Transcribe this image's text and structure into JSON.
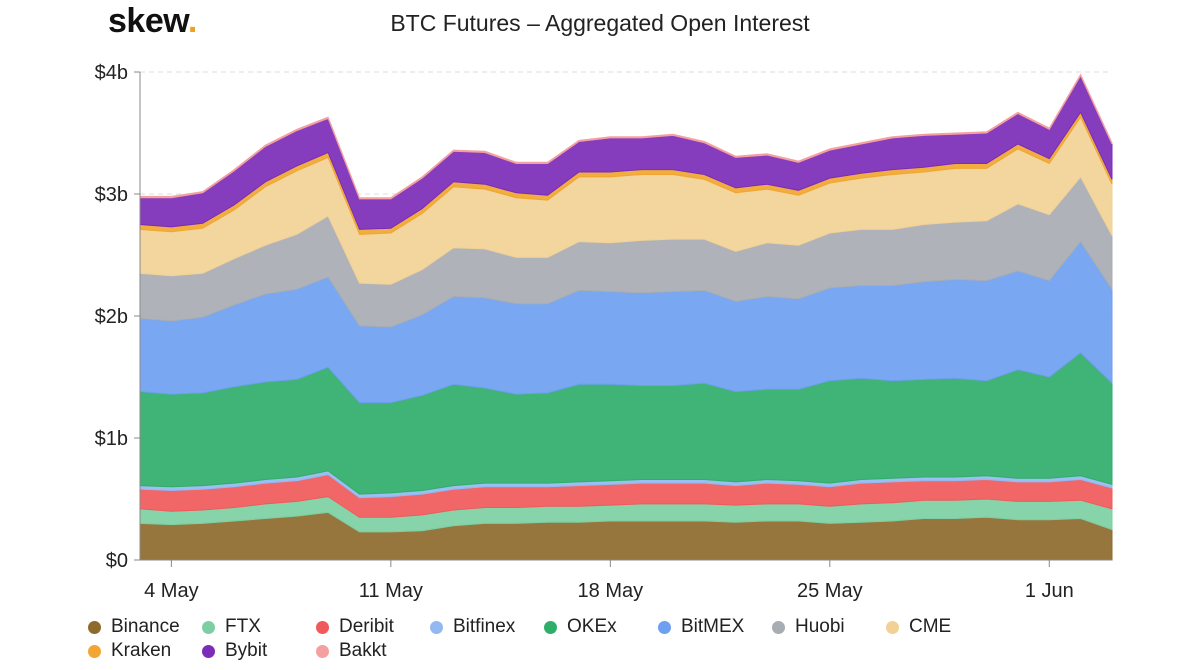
{
  "brand": {
    "name": "skew",
    "dot": "."
  },
  "chart_data": {
    "type": "area",
    "stacked": true,
    "title": "BTC Futures – Aggregated Open Interest",
    "xlabel": "",
    "ylabel": "",
    "unit": "billion USD",
    "ylim": [
      0,
      4
    ],
    "y_ticks": [
      {
        "value": 0,
        "label": "$0"
      },
      {
        "value": 1,
        "label": "$1b"
      },
      {
        "value": 2,
        "label": "$2b"
      },
      {
        "value": 3,
        "label": "$3b"
      },
      {
        "value": 4,
        "label": "$4b"
      }
    ],
    "x": [
      "2020-05-03",
      "2020-05-04",
      "2020-05-05",
      "2020-05-06",
      "2020-05-07",
      "2020-05-08",
      "2020-05-09",
      "2020-05-10",
      "2020-05-11",
      "2020-05-12",
      "2020-05-13",
      "2020-05-14",
      "2020-05-15",
      "2020-05-16",
      "2020-05-17",
      "2020-05-18",
      "2020-05-19",
      "2020-05-20",
      "2020-05-21",
      "2020-05-22",
      "2020-05-23",
      "2020-05-24",
      "2020-05-25",
      "2020-05-26",
      "2020-05-27",
      "2020-05-28",
      "2020-05-29",
      "2020-05-30",
      "2020-05-31",
      "2020-06-01",
      "2020-06-02",
      "2020-06-03"
    ],
    "x_ticks": [
      {
        "value": "2020-05-04",
        "label": "4 May"
      },
      {
        "value": "2020-05-11",
        "label": "11 May"
      },
      {
        "value": "2020-05-18",
        "label": "18 May"
      },
      {
        "value": "2020-05-25",
        "label": "25 May"
      },
      {
        "value": "2020-06-01",
        "label": "1 Jun"
      }
    ],
    "grid": "horizontal-dashed",
    "legend_position": "bottom",
    "series": [
      {
        "name": "Binance",
        "color": "#8e6a2c",
        "values": [
          0.3,
          0.29,
          0.3,
          0.32,
          0.34,
          0.36,
          0.39,
          0.23,
          0.23,
          0.24,
          0.28,
          0.3,
          0.3,
          0.31,
          0.31,
          0.32,
          0.32,
          0.32,
          0.32,
          0.31,
          0.32,
          0.32,
          0.3,
          0.31,
          0.32,
          0.34,
          0.34,
          0.35,
          0.33,
          0.33,
          0.34,
          0.25
        ]
      },
      {
        "name": "FTX",
        "color": "#7dcfa3",
        "values": [
          0.12,
          0.11,
          0.11,
          0.11,
          0.12,
          0.12,
          0.13,
          0.12,
          0.12,
          0.13,
          0.13,
          0.13,
          0.13,
          0.13,
          0.13,
          0.13,
          0.14,
          0.14,
          0.14,
          0.14,
          0.14,
          0.14,
          0.14,
          0.15,
          0.15,
          0.15,
          0.15,
          0.15,
          0.15,
          0.15,
          0.15,
          0.17
        ]
      },
      {
        "name": "Deribit",
        "color": "#f05a5a",
        "values": [
          0.16,
          0.17,
          0.17,
          0.17,
          0.17,
          0.17,
          0.18,
          0.16,
          0.17,
          0.17,
          0.17,
          0.17,
          0.17,
          0.16,
          0.17,
          0.17,
          0.17,
          0.17,
          0.17,
          0.16,
          0.17,
          0.16,
          0.16,
          0.17,
          0.17,
          0.16,
          0.16,
          0.16,
          0.16,
          0.16,
          0.17,
          0.17
        ]
      },
      {
        "name": "Bitfinex",
        "color": "#93b8f2",
        "values": [
          0.03,
          0.03,
          0.03,
          0.03,
          0.03,
          0.03,
          0.03,
          0.03,
          0.03,
          0.03,
          0.03,
          0.03,
          0.03,
          0.03,
          0.03,
          0.03,
          0.03,
          0.03,
          0.03,
          0.03,
          0.03,
          0.03,
          0.03,
          0.03,
          0.03,
          0.03,
          0.03,
          0.03,
          0.03,
          0.03,
          0.03,
          0.03
        ]
      },
      {
        "name": "OKEx",
        "color": "#2fae6a",
        "values": [
          0.77,
          0.76,
          0.76,
          0.79,
          0.8,
          0.8,
          0.85,
          0.75,
          0.74,
          0.78,
          0.83,
          0.78,
          0.73,
          0.74,
          0.8,
          0.79,
          0.77,
          0.77,
          0.79,
          0.74,
          0.74,
          0.75,
          0.84,
          0.83,
          0.8,
          0.8,
          0.81,
          0.78,
          0.89,
          0.83,
          1.01,
          0.83
        ]
      },
      {
        "name": "BitMEX",
        "color": "#6f9ff0",
        "values": [
          0.6,
          0.6,
          0.62,
          0.67,
          0.72,
          0.74,
          0.74,
          0.63,
          0.62,
          0.66,
          0.72,
          0.74,
          0.74,
          0.73,
          0.77,
          0.76,
          0.76,
          0.77,
          0.76,
          0.74,
          0.76,
          0.74,
          0.76,
          0.76,
          0.78,
          0.8,
          0.81,
          0.82,
          0.81,
          0.79,
          0.91,
          0.77
        ]
      },
      {
        "name": "Huobi",
        "color": "#a8adb3",
        "values": [
          0.37,
          0.37,
          0.36,
          0.38,
          0.4,
          0.45,
          0.5,
          0.35,
          0.35,
          0.37,
          0.4,
          0.4,
          0.38,
          0.38,
          0.4,
          0.4,
          0.43,
          0.43,
          0.42,
          0.41,
          0.44,
          0.44,
          0.45,
          0.46,
          0.46,
          0.47,
          0.47,
          0.49,
          0.55,
          0.54,
          0.53,
          0.44
        ]
      },
      {
        "name": "CME",
        "color": "#f2d196",
        "values": [
          0.36,
          0.36,
          0.37,
          0.4,
          0.48,
          0.52,
          0.48,
          0.4,
          0.42,
          0.46,
          0.5,
          0.49,
          0.49,
          0.47,
          0.53,
          0.54,
          0.54,
          0.53,
          0.49,
          0.48,
          0.44,
          0.41,
          0.41,
          0.42,
          0.45,
          0.43,
          0.44,
          0.43,
          0.45,
          0.42,
          0.49,
          0.42
        ]
      },
      {
        "name": "Kraken",
        "color": "#f0a630",
        "values": [
          0.04,
          0.04,
          0.04,
          0.04,
          0.04,
          0.04,
          0.04,
          0.04,
          0.04,
          0.04,
          0.04,
          0.04,
          0.04,
          0.04,
          0.04,
          0.04,
          0.04,
          0.04,
          0.04,
          0.04,
          0.04,
          0.04,
          0.04,
          0.04,
          0.04,
          0.04,
          0.04,
          0.04,
          0.04,
          0.04,
          0.04,
          0.04
        ]
      },
      {
        "name": "Bybit",
        "color": "#7b2cb8",
        "values": [
          0.22,
          0.24,
          0.25,
          0.28,
          0.29,
          0.29,
          0.28,
          0.25,
          0.24,
          0.25,
          0.25,
          0.26,
          0.24,
          0.26,
          0.25,
          0.28,
          0.26,
          0.28,
          0.26,
          0.25,
          0.24,
          0.23,
          0.23,
          0.24,
          0.26,
          0.26,
          0.24,
          0.25,
          0.25,
          0.24,
          0.3,
          0.29
        ]
      },
      {
        "name": "Bakkt",
        "color": "#f4a0a0",
        "values": [
          0.01,
          0.01,
          0.01,
          0.01,
          0.01,
          0.01,
          0.01,
          0.01,
          0.01,
          0.01,
          0.01,
          0.01,
          0.01,
          0.01,
          0.01,
          0.01,
          0.01,
          0.01,
          0.01,
          0.01,
          0.01,
          0.01,
          0.01,
          0.01,
          0.01,
          0.01,
          0.01,
          0.01,
          0.01,
          0.01,
          0.01,
          0.01
        ]
      }
    ]
  }
}
